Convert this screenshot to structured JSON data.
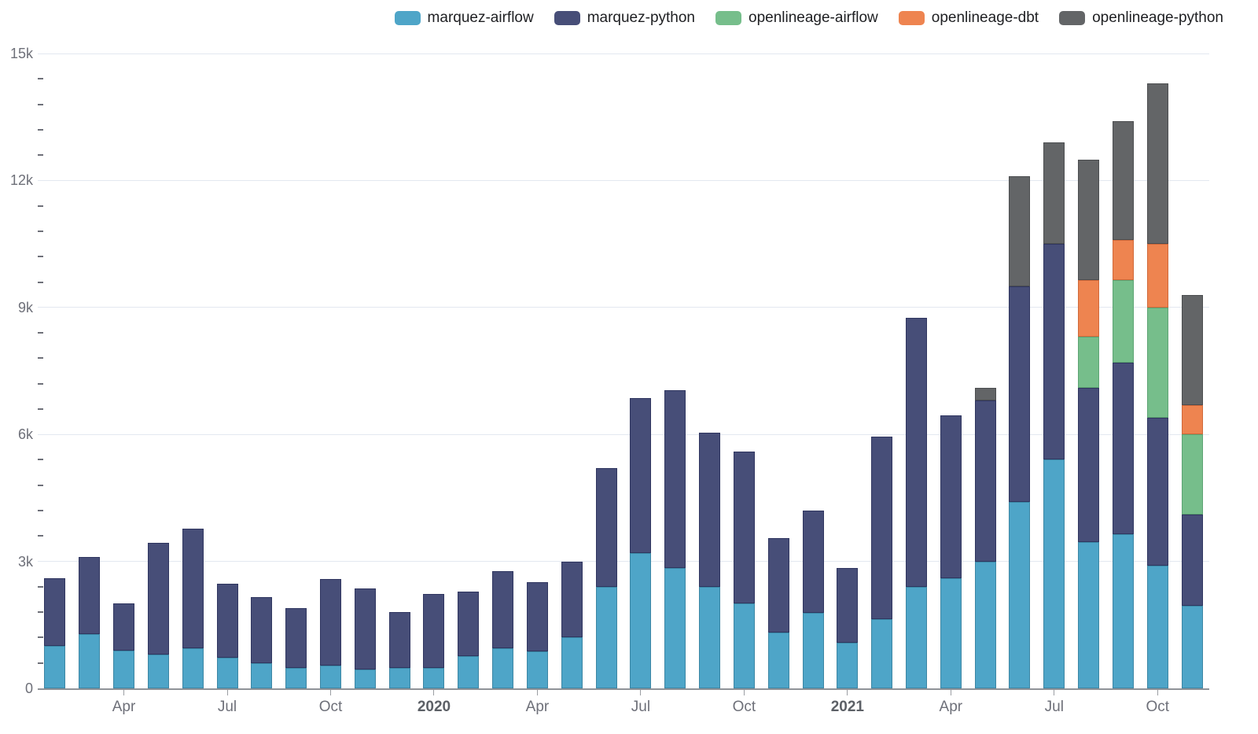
{
  "colors": {
    "background": "#ffffff",
    "gridline": "#e3e8f0",
    "axis_line": "#8f9398",
    "axis_label": "#6e7079",
    "year_label": "#5c6066",
    "legend_text": "#1e1f22"
  },
  "chart_data": {
    "type": "bar",
    "stacked": true,
    "title": "",
    "xlabel": "",
    "ylabel": "",
    "ylim": [
      0,
      15000
    ],
    "grid": true,
    "legend_position": "top-right",
    "categories": [
      "Feb 2019",
      "Mar 2019",
      "Apr 2019",
      "May 2019",
      "Jun 2019",
      "Jul 2019",
      "Aug 2019",
      "Sep 2019",
      "Oct 2019",
      "Nov 2019",
      "Dec 2019",
      "Jan 2020",
      "Feb 2020",
      "Mar 2020",
      "Apr 2020",
      "May 2020",
      "Jun 2020",
      "Jul 2020",
      "Aug 2020",
      "Sep 2020",
      "Oct 2020",
      "Nov 2020",
      "Dec 2020",
      "Jan 2021",
      "Feb 2021",
      "Mar 2021",
      "Apr 2021",
      "May 2021",
      "Jun 2021",
      "Jul 2021",
      "Aug 2021",
      "Sep 2021",
      "Oct 2021",
      "Nov 2021"
    ],
    "series": [
      {
        "name": "marquez-airflow",
        "color": "#4ea5c8",
        "border_color": "#3c86a4",
        "values": [
          1000,
          1280,
          900,
          800,
          950,
          730,
          600,
          480,
          540,
          450,
          480,
          480,
          760,
          950,
          870,
          1200,
          2400,
          3200,
          2850,
          2400,
          2000,
          1320,
          1780,
          1070,
          1630,
          2400,
          2600,
          3000,
          4400,
          5400,
          3450,
          3650,
          2900,
          1950
        ]
      },
      {
        "name": "marquez-python",
        "color": "#474e78",
        "border_color": "#303660",
        "values": [
          1600,
          1820,
          1100,
          2640,
          2830,
          1750,
          1550,
          1410,
          2040,
          1920,
          1320,
          1760,
          1520,
          1820,
          1640,
          1800,
          2800,
          3650,
          4200,
          3650,
          3600,
          2230,
          2420,
          1780,
          4320,
          6350,
          3850,
          3800,
          5100,
          5100,
          3650,
          4050,
          3500,
          2150
        ]
      },
      {
        "name": "openlineage-airflow",
        "color": "#76be8b",
        "border_color": "#5da473",
        "values": [
          0,
          0,
          0,
          0,
          0,
          0,
          0,
          0,
          0,
          0,
          0,
          0,
          0,
          0,
          0,
          0,
          0,
          0,
          0,
          0,
          0,
          0,
          0,
          0,
          0,
          0,
          0,
          0,
          0,
          0,
          1200,
          1950,
          2600,
          1900
        ]
      },
      {
        "name": "openlineage-dbt",
        "color": "#ee8450",
        "border_color": "#d0693a",
        "values": [
          0,
          0,
          0,
          0,
          0,
          0,
          0,
          0,
          0,
          0,
          0,
          0,
          0,
          0,
          0,
          0,
          0,
          0,
          0,
          0,
          0,
          0,
          0,
          0,
          0,
          0,
          0,
          0,
          0,
          0,
          1350,
          950,
          1500,
          700
        ]
      },
      {
        "name": "openlineage-python",
        "color": "#636567",
        "border_color": "#4c4e50",
        "values": [
          0,
          0,
          0,
          0,
          0,
          0,
          0,
          0,
          0,
          0,
          0,
          0,
          0,
          0,
          0,
          0,
          0,
          0,
          0,
          0,
          0,
          0,
          0,
          0,
          0,
          0,
          0,
          300,
          2600,
          2400,
          2850,
          2800,
          3800,
          2600
        ]
      }
    ],
    "y_ticks": [
      {
        "label": "0",
        "value": 0
      },
      {
        "label": "3k",
        "value": 3000
      },
      {
        "label": "6k",
        "value": 6000
      },
      {
        "label": "9k",
        "value": 9000
      },
      {
        "label": "12k",
        "value": 12000
      },
      {
        "label": "15k",
        "value": 15000
      }
    ],
    "y_minor_step": 600,
    "x_ticks": [
      {
        "label": "Apr",
        "index": 2,
        "bold": false
      },
      {
        "label": "Jul",
        "index": 5,
        "bold": false
      },
      {
        "label": "Oct",
        "index": 8,
        "bold": false
      },
      {
        "label": "2020",
        "index": 11,
        "bold": true
      },
      {
        "label": "Apr",
        "index": 14,
        "bold": false
      },
      {
        "label": "Jul",
        "index": 17,
        "bold": false
      },
      {
        "label": "Oct",
        "index": 20,
        "bold": false
      },
      {
        "label": "2021",
        "index": 23,
        "bold": true
      },
      {
        "label": "Apr",
        "index": 26,
        "bold": false
      },
      {
        "label": "Jul",
        "index": 29,
        "bold": false
      },
      {
        "label": "Oct",
        "index": 32,
        "bold": false
      }
    ]
  }
}
